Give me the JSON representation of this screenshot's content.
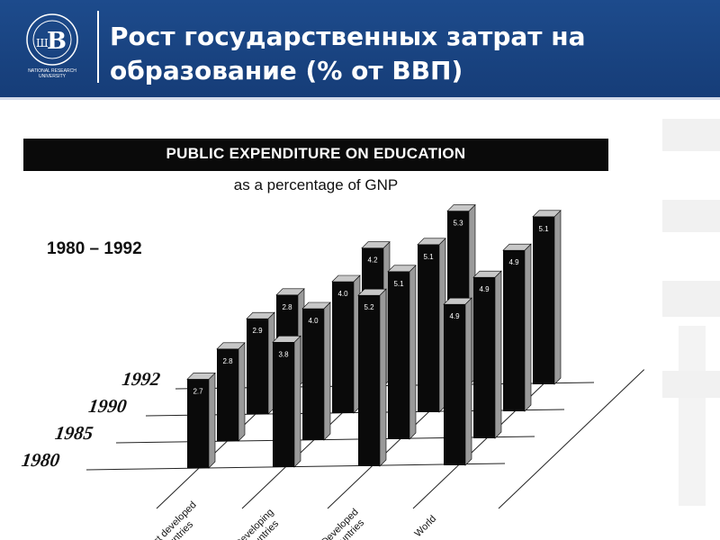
{
  "slide": {
    "title": "Рост государственных затрат на образование (% от ВВП)",
    "logo_caption": "NATIONAL RESEARCH UNIVERSITY",
    "header_color": "#1d4b8c"
  },
  "chart_data": {
    "type": "bar",
    "title": "PUBLIC EXPENDITURE ON EDUCATION",
    "subtitle": "as a percentage of GNP",
    "period_label": "1980 – 1992",
    "categories": [
      "Least developed countries",
      "Developing countries",
      "Developed countries",
      "World"
    ],
    "years": [
      "1980",
      "1985",
      "1990",
      "1992"
    ],
    "series": [
      {
        "name": "1980",
        "values": [
          2.7,
          3.8,
          5.2,
          4.9
        ]
      },
      {
        "name": "1985",
        "values": [
          2.8,
          4.0,
          5.1,
          4.9
        ]
      },
      {
        "name": "1990",
        "values": [
          2.9,
          4.0,
          5.1,
          4.9
        ]
      },
      {
        "name": "1992",
        "values": [
          2.8,
          4.2,
          5.3,
          5.1
        ]
      }
    ],
    "value_labels": [
      [
        "2.7",
        "2.8",
        "2.9",
        "2.8"
      ],
      [
        "3.8",
        "4.0",
        "4.0",
        "4.2"
      ],
      [
        "5.2",
        "5.1",
        "5.1",
        "5.3"
      ],
      [
        "4.9",
        "4.9",
        "4.9",
        "5.1"
      ]
    ],
    "bar_color": "#0a0a0a",
    "highlight_color": "#9a9a9a"
  }
}
